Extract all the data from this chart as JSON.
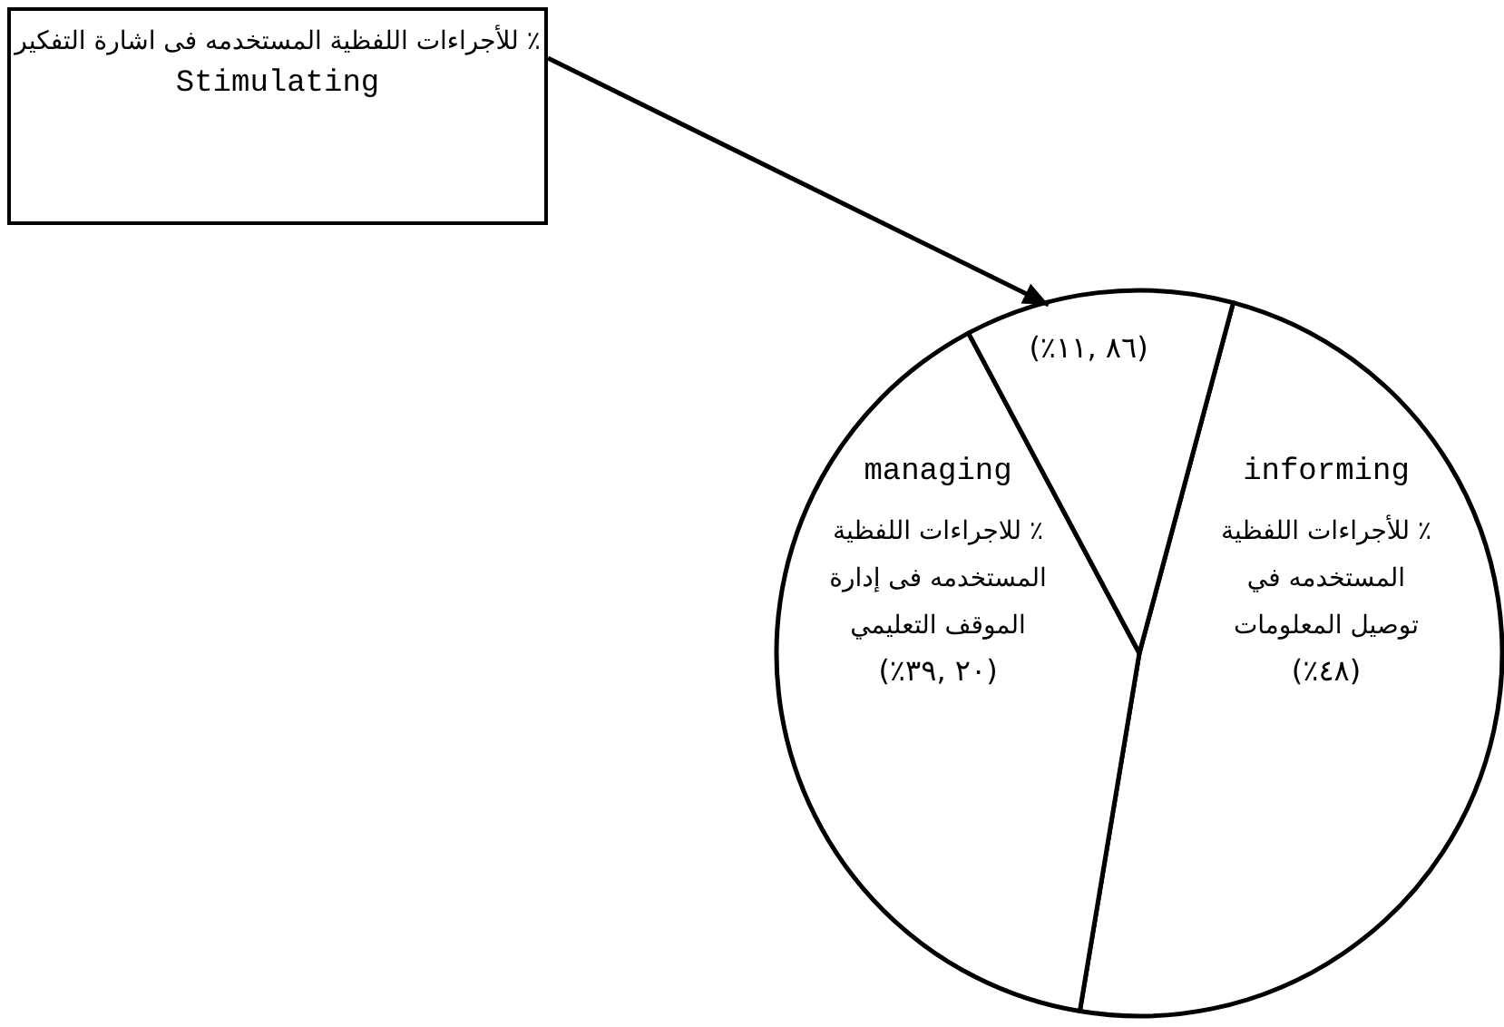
{
  "chart_data": {
    "type": "pie",
    "categories": [
      "٪ للأجراءات اللفظية المستخدمه في توصيل المعلومات",
      "٪ للاجراءات اللفظية المستخدمه فى إدارة الموقف التعليمي",
      "٪ للأجراءات اللفظية المستخدمه فى اشارة التفكير"
    ],
    "values": [
      48,
      39.2,
      11.86
    ],
    "colors": [
      "#ffffff",
      "#ffffff",
      "#ffffff"
    ],
    "value_labels": [
      "(٪٤٨)",
      "(٪٣٩, ٢٠)",
      "(٪١١, ٨٦)"
    ],
    "annotations": [
      "informing",
      "managing",
      "Stimulating"
    ],
    "legend": false
  }
}
